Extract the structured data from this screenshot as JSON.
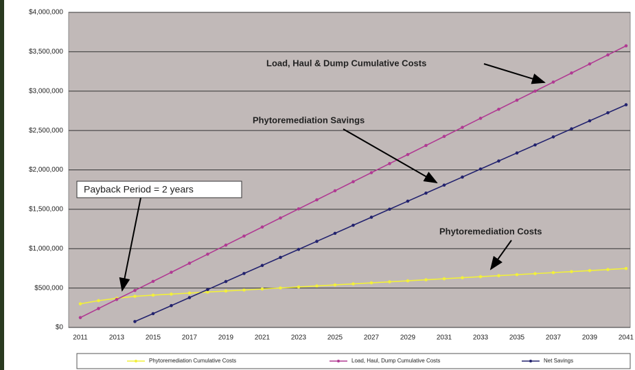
{
  "chart_data": {
    "type": "line",
    "categories": [
      "2011",
      null,
      "2013",
      null,
      "2015",
      null,
      "2017",
      null,
      "2019",
      null,
      "2021",
      null,
      "2023",
      null,
      "2025",
      null,
      "2027",
      null,
      "2029",
      null,
      "2031",
      null,
      "2033",
      null,
      "2035",
      null,
      "2037",
      null,
      "2039",
      null,
      "2041"
    ],
    "series": [
      {
        "name": "Phytoremediation Cumulative Costs",
        "color": "#f2f03a",
        "values": [
          300000,
          340000,
          370000,
          395000,
          410000,
          423000,
          436000,
          449000,
          462000,
          475000,
          488000,
          501000,
          514000,
          527000,
          540000,
          553000,
          566000,
          579000,
          592000,
          605000,
          618000,
          631000,
          644000,
          657000,
          670000,
          683000,
          696000,
          709000,
          722000,
          735000,
          748000
        ]
      },
      {
        "name": "Load, Haul, Dump Cumulative Costs",
        "color": "#b03a92",
        "values": [
          125000,
          240000,
          355000,
          470000,
          585000,
          700000,
          815000,
          930000,
          1045000,
          1160000,
          1275000,
          1390000,
          1505000,
          1620000,
          1735000,
          1850000,
          1965000,
          2080000,
          2195000,
          2310000,
          2425000,
          2540000,
          2655000,
          2770000,
          2885000,
          3000000,
          3115000,
          3230000,
          3345000,
          3460000,
          3575000
        ]
      },
      {
        "name": "Net Savings",
        "color": "#22226e",
        "values": [
          null,
          null,
          null,
          75000,
          175000,
          277000,
          379000,
          481000,
          583000,
          685000,
          787000,
          889000,
          991000,
          1093000,
          1195000,
          1297000,
          1399000,
          1501000,
          1603000,
          1705000,
          1807000,
          1909000,
          2011000,
          2113000,
          2215000,
          2317000,
          2419000,
          2521000,
          2623000,
          2725000,
          2827000
        ]
      }
    ],
    "ylim": [
      0,
      4000000
    ],
    "yticks": [
      {
        "value": 0,
        "label": "$0"
      },
      {
        "value": 500000,
        "label": "$500,000"
      },
      {
        "value": 1000000,
        "label": "$1,000,000"
      },
      {
        "value": 1500000,
        "label": "$1,500,000"
      },
      {
        "value": 2000000,
        "label": "$2,000,000"
      },
      {
        "value": 2500000,
        "label": "$2,500,000"
      },
      {
        "value": 3000000,
        "label": "$3,000,000"
      },
      {
        "value": 3500000,
        "label": "$3,500,000"
      },
      {
        "value": 4000000,
        "label": "$4,000,000"
      }
    ],
    "grid": true,
    "annotations": [
      "Load, Haul & Dump Cumulative Costs",
      "Phytoremediation Savings",
      "Payback Period = 2 years",
      "Phytoremediation Costs"
    ]
  }
}
